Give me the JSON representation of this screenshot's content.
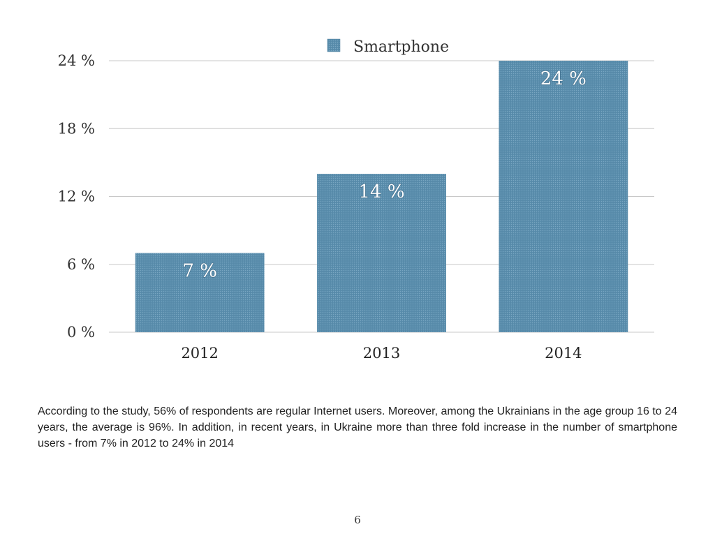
{
  "chart_data": {
    "type": "bar",
    "categories": [
      "2012",
      "2013",
      "2014"
    ],
    "series": [
      {
        "name": "Smartphone",
        "values": [
          7,
          14,
          24
        ]
      }
    ],
    "data_labels": [
      "7 %",
      "14 %",
      "24 %"
    ],
    "y_ticks": [
      {
        "value": 0,
        "label": "0 %"
      },
      {
        "value": 6,
        "label": "6 %"
      },
      {
        "value": 12,
        "label": "12 %"
      },
      {
        "value": 18,
        "label": "18 %"
      },
      {
        "value": 24,
        "label": "24 %"
      }
    ],
    "ylim": [
      0,
      24
    ],
    "grid": true,
    "legend_position": "top-center",
    "bar_color": "#5b8fae"
  },
  "description": "According to the study, 56% of respondents are regular Internet users. Moreover, among the Ukrainians in the age group 16 to 24 years, the average is 96%. In addition, in recent years, in Ukraine more than three fold increase in the number of smartphone users - from 7% in 2012 to 24% in 2014",
  "page_number": "6"
}
